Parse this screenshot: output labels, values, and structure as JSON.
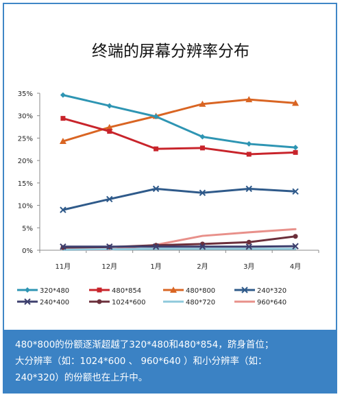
{
  "chart_data": {
    "type": "line",
    "title": "终端的屏幕分辨率分布",
    "categories": [
      "11月",
      "12月",
      "1月",
      "2月",
      "3月",
      "4月"
    ],
    "ylim": [
      0,
      35
    ],
    "yticks": [
      "0%",
      "5%",
      "10%",
      "15%",
      "20%",
      "25%",
      "30%",
      "35%"
    ],
    "grid": false,
    "legend_position": "bottom",
    "series": [
      {
        "name": "320*480",
        "values": [
          34.6,
          32.2,
          29.8,
          25.3,
          23.7,
          22.9
        ],
        "color": "#2e95b3",
        "marker": "diamond"
      },
      {
        "name": "480*854",
        "values": [
          29.4,
          26.5,
          22.6,
          22.8,
          21.4,
          21.8
        ],
        "color": "#c8242b",
        "marker": "square"
      },
      {
        "name": "480*800",
        "values": [
          24.3,
          27.4,
          29.9,
          32.6,
          33.6,
          32.8
        ],
        "color": "#d96523",
        "marker": "triangle"
      },
      {
        "name": "240*320",
        "values": [
          9.0,
          11.4,
          13.7,
          12.8,
          13.7,
          13.1
        ],
        "color": "#2f5a8a",
        "marker": "x"
      },
      {
        "name": "240*400",
        "values": [
          0.8,
          0.8,
          0.8,
          0.8,
          0.8,
          0.9
        ],
        "color": "#3d3f6e",
        "marker": "x"
      },
      {
        "name": "1024*600",
        "values": [
          0.6,
          0.7,
          1.1,
          1.4,
          1.8,
          3.1
        ],
        "color": "#6b2f3b",
        "marker": "circle"
      },
      {
        "name": "480*720",
        "values": [
          0.1,
          0.2,
          0.3,
          0.3,
          0.3,
          0.3
        ],
        "color": "#8ec9db",
        "marker": "none"
      },
      {
        "name": "960*640",
        "values": [
          0.1,
          0.1,
          1.2,
          3.2,
          4.0,
          4.7
        ],
        "color": "#e8908a",
        "marker": "none"
      }
    ]
  },
  "caption": {
    "line1": "480*800的份额逐渐超越了320*480和480*854，跻身首位；",
    "line2": "大分辨率（如：1024*600 、 960*640 ）和小分辨率（如：",
    "line3": "240*320）的份额也在上升中。"
  }
}
